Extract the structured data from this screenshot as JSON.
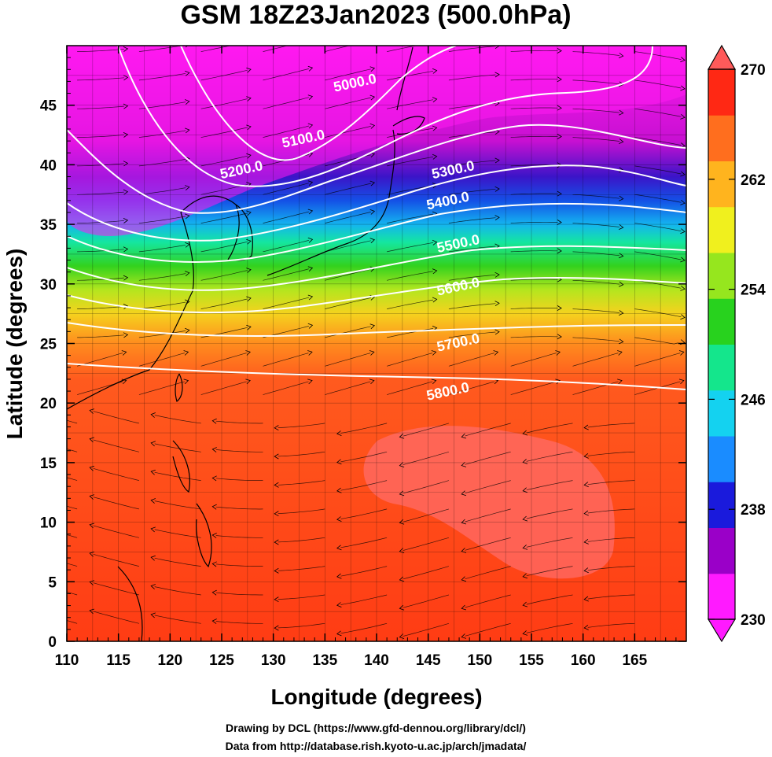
{
  "figure": {
    "title": "GSM 18Z23Jan2023 (500.0hPa)",
    "xlabel": "Longitude (degrees)",
    "ylabel": "Latitude  (degrees)",
    "credit_line1": "Drawing by DCL (https://www.gfd-dennou.org/library/dcl/)",
    "credit_line2": "Data from http://database.rish.kyoto-u.ac.jp/arch/jmadata/"
  },
  "axes": {
    "xlim": [
      110,
      170
    ],
    "ylim": [
      0,
      50
    ],
    "xticks": [
      "110",
      "115",
      "120",
      "125",
      "130",
      "135",
      "140",
      "145",
      "150",
      "155",
      "160",
      "165"
    ],
    "yticks": [
      "0",
      "5",
      "10",
      "15",
      "20",
      "25",
      "30",
      "35",
      "40",
      "45"
    ],
    "grid": true
  },
  "colorbar": {
    "min": 230,
    "max": 270,
    "labels": [
      "270",
      "262",
      "254",
      "246",
      "238",
      "230"
    ],
    "extend": "both",
    "colors": [
      "#ff1aff",
      "#9a00c8",
      "#1a1adc",
      "#1a8cff",
      "#14d2f0",
      "#14e68c",
      "#28d21e",
      "#96e61e",
      "#f0f01e",
      "#ffb41e",
      "#ff6e1e",
      "#ff2814"
    ],
    "max_color": "#ff5a5a"
  },
  "contours": [
    {
      "label": "5000.0",
      "lon": 138,
      "lat": 46.5
    },
    {
      "label": "5100.0",
      "lon": 133,
      "lat": 41.8
    },
    {
      "label": "5200.0",
      "lon": 127,
      "lat": 39.2
    },
    {
      "label": "5300.0",
      "lon": 147.5,
      "lat": 39.2
    },
    {
      "label": "5400.0",
      "lon": 147,
      "lat": 36.6
    },
    {
      "label": "5500.0",
      "lon": 148,
      "lat": 33.0
    },
    {
      "label": "5600.0",
      "lon": 148,
      "lat": 29.4
    },
    {
      "label": "5700.0",
      "lon": 148,
      "lat": 24.7
    },
    {
      "label": "5800.0",
      "lon": 147,
      "lat": 20.6
    }
  ],
  "chart_data": {
    "type": "heatmap",
    "variable": "temperature (K) with geopotential height contours (m) and wind streamlines",
    "level": "500.0hPa",
    "color_range": [
      230,
      270
    ],
    "contour_levels": [
      5000,
      5100,
      5200,
      5300,
      5400,
      5500,
      5600,
      5700,
      5800
    ],
    "temperature_by_latitude": [
      {
        "lat": 0,
        "value": 269
      },
      {
        "lat": 20,
        "value": 269
      },
      {
        "lat": 25,
        "value": 266
      },
      {
        "lat": 28,
        "value": 262
      },
      {
        "lat": 31,
        "value": 255
      },
      {
        "lat": 35,
        "value": 247
      },
      {
        "lat": 38,
        "value": 239
      },
      {
        "lat": 41,
        "value": 233
      },
      {
        "lat": 50,
        "value": 230
      }
    ]
  }
}
